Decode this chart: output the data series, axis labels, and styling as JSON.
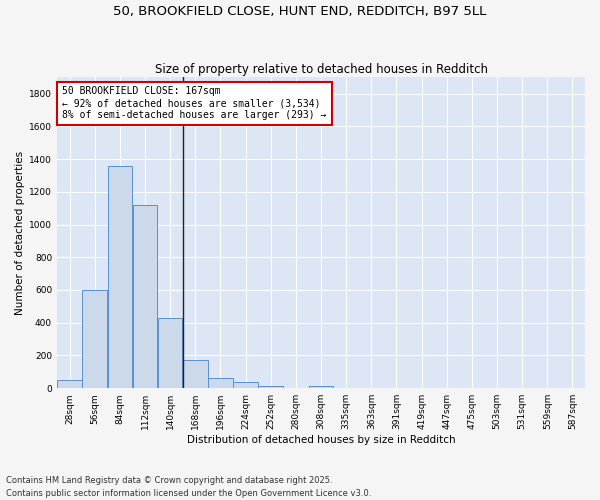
{
  "title": "50, BROOKFIELD CLOSE, HUNT END, REDDITCH, B97 5LL",
  "subtitle": "Size of property relative to detached houses in Redditch",
  "xlabel": "Distribution of detached houses by size in Redditch",
  "ylabel": "Number of detached properties",
  "bar_color": "#ccd9ea",
  "bar_edge_color": "#5b8fce",
  "bg_color": "#dce6f5",
  "grid_color": "#ffffff",
  "fig_bg_color": "#f5f5f5",
  "annotation_box_color": "#cc0000",
  "annotation_text": "50 BROOKFIELD CLOSE: 167sqm\n← 92% of detached houses are smaller (3,534)\n8% of semi-detached houses are larger (293) →",
  "property_line_x": 5,
  "categories": [
    "28sqm",
    "56sqm",
    "84sqm",
    "112sqm",
    "140sqm",
    "168sqm",
    "196sqm",
    "224sqm",
    "252sqm",
    "280sqm",
    "308sqm",
    "335sqm",
    "363sqm",
    "391sqm",
    "419sqm",
    "447sqm",
    "475sqm",
    "503sqm",
    "531sqm",
    "559sqm",
    "587sqm"
  ],
  "values": [
    50,
    600,
    1360,
    1120,
    430,
    170,
    65,
    40,
    15,
    0,
    15,
    0,
    0,
    0,
    0,
    0,
    0,
    0,
    0,
    0,
    0
  ],
  "ylim": [
    0,
    1900
  ],
  "yticks": [
    0,
    200,
    400,
    600,
    800,
    1000,
    1200,
    1400,
    1600,
    1800
  ],
  "footer": "Contains HM Land Registry data © Crown copyright and database right 2025.\nContains public sector information licensed under the Open Government Licence v3.0.",
  "title_fontsize": 9.5,
  "subtitle_fontsize": 8.5,
  "axis_label_fontsize": 7.5,
  "tick_fontsize": 6.5,
  "annotation_fontsize": 7,
  "footer_fontsize": 6
}
